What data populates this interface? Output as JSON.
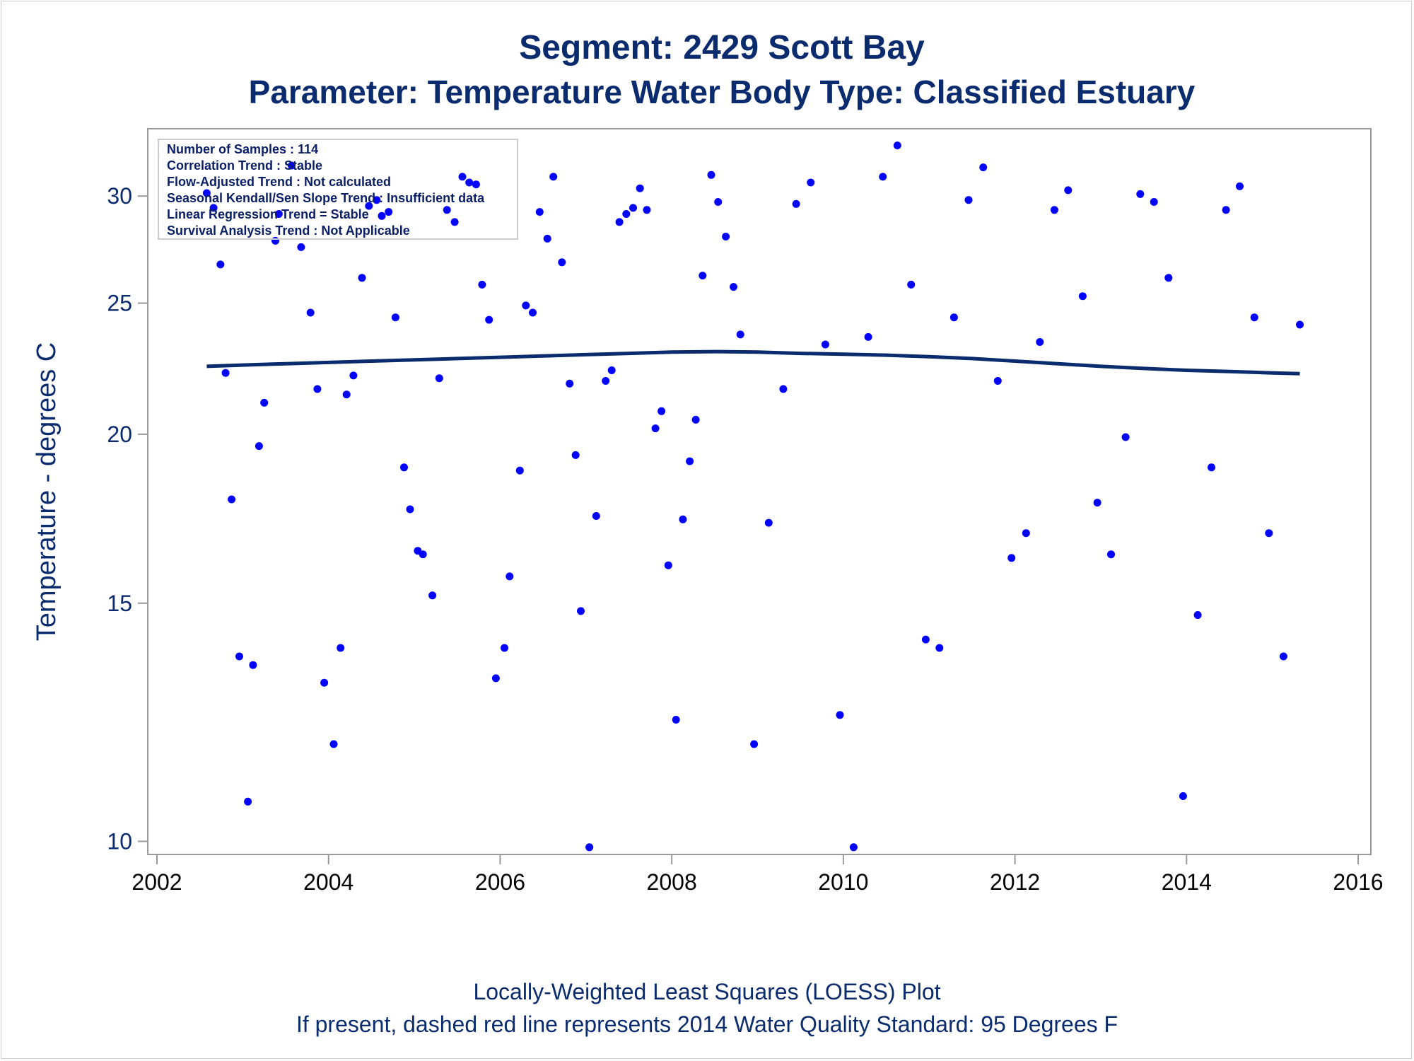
{
  "colors": {
    "title": "#0a2b6e",
    "point": "#0000ff",
    "loess_line": "#0a2b6e",
    "frame": "#999999",
    "inset_text": "#0a1f66",
    "y_tick_text": "#0a2b6e",
    "x_tick_text": "#000000"
  },
  "title_lines": [
    "Segment: 2429  Scott Bay",
    "Parameter: Temperature   Water Body Type: Classified Estuary"
  ],
  "footnotes": [
    "Locally-Weighted Least Squares (LOESS) Plot",
    "If present, dashed red line represents 2014 Water Quality Standard: 95   Degrees F"
  ],
  "inset_lines": [
    "Number of Samples : 114",
    "Correlation Trend : Stable",
    "Flow-Adjusted Trend : Not calculated",
    "Seasonal Kendall/Sen Slope Trend : Insufficient data",
    "Linear Regression Trend = Stable",
    "Survival Analysis Trend : Not Applicable"
  ],
  "chart_data": {
    "type": "scatter",
    "title": "Segment: 2429  Scott Bay",
    "subtitle": "Parameter: Temperature   Water Body Type: Classified Estuary",
    "xlabel": "",
    "ylabel": "Temperature - degrees C",
    "x_scale": "time (years)",
    "y_scale": "log",
    "xlim": [
      2002,
      2016
    ],
    "ylim": [
      9.85,
      33.2
    ],
    "x_ticks": [
      2002,
      2004,
      2006,
      2008,
      2010,
      2012,
      2014,
      2016
    ],
    "x_tick_labels": [
      "2002",
      "2004",
      "2006",
      "2008",
      "2010",
      "2012",
      "2014",
      "2016"
    ],
    "y_ticks": [
      10,
      15,
      20,
      25,
      30
    ],
    "y_tick_labels": [
      "10",
      "15",
      "20",
      "25",
      "30"
    ],
    "grid": false,
    "legend": "none",
    "series": [
      {
        "type": "scatter",
        "points": [
          [
            2002.58,
            30.15
          ],
          [
            2002.66,
            29.4
          ],
          [
            2002.74,
            26.7
          ],
          [
            2002.8,
            22.2
          ],
          [
            2002.87,
            17.9
          ],
          [
            2002.96,
            13.7
          ],
          [
            2003.06,
            10.7
          ],
          [
            2003.12,
            13.5
          ],
          [
            2003.19,
            19.6
          ],
          [
            2003.25,
            21.1
          ],
          [
            2003.42,
            29.1
          ],
          [
            2003.38,
            27.8
          ],
          [
            2003.57,
            31.6
          ],
          [
            2003.68,
            27.5
          ],
          [
            2003.79,
            24.6
          ],
          [
            2003.87,
            21.6
          ],
          [
            2003.95,
            13.1
          ],
          [
            2004.06,
            11.8
          ],
          [
            2004.14,
            13.9
          ],
          [
            2004.21,
            21.4
          ],
          [
            2004.29,
            22.1
          ],
          [
            2004.39,
            26.1
          ],
          [
            2004.47,
            29.5
          ],
          [
            2004.56,
            29.8
          ],
          [
            2004.62,
            29.0
          ],
          [
            2004.7,
            29.2
          ],
          [
            2004.78,
            24.4
          ],
          [
            2004.88,
            18.9
          ],
          [
            2004.95,
            17.6
          ],
          [
            2005.04,
            16.4
          ],
          [
            2005.1,
            16.3
          ],
          [
            2005.21,
            15.2
          ],
          [
            2005.29,
            22.0
          ],
          [
            2005.38,
            29.3
          ],
          [
            2005.47,
            28.7
          ],
          [
            2005.56,
            31.0
          ],
          [
            2005.64,
            30.7
          ],
          [
            2005.72,
            30.6
          ],
          [
            2005.79,
            25.8
          ],
          [
            2005.87,
            24.3
          ],
          [
            2005.95,
            13.2
          ],
          [
            2006.05,
            13.9
          ],
          [
            2006.11,
            15.7
          ],
          [
            2006.23,
            18.8
          ],
          [
            2006.3,
            24.9
          ],
          [
            2006.38,
            24.6
          ],
          [
            2006.46,
            29.2
          ],
          [
            2006.55,
            27.9
          ],
          [
            2006.62,
            31.0
          ],
          [
            2006.72,
            26.8
          ],
          [
            2006.81,
            21.8
          ],
          [
            2006.88,
            19.3
          ],
          [
            2006.94,
            14.8
          ],
          [
            2007.04,
            9.9
          ],
          [
            2007.12,
            17.4
          ],
          [
            2007.23,
            21.9
          ],
          [
            2007.3,
            22.3
          ],
          [
            2007.39,
            28.7
          ],
          [
            2007.47,
            29.1
          ],
          [
            2007.55,
            29.4
          ],
          [
            2007.63,
            30.4
          ],
          [
            2007.71,
            29.3
          ],
          [
            2007.81,
            20.2
          ],
          [
            2007.88,
            20.8
          ],
          [
            2007.96,
            16.0
          ],
          [
            2008.05,
            12.3
          ],
          [
            2008.13,
            17.3
          ],
          [
            2008.21,
            19.1
          ],
          [
            2008.28,
            20.5
          ],
          [
            2008.36,
            26.2
          ],
          [
            2008.46,
            31.1
          ],
          [
            2008.54,
            29.7
          ],
          [
            2008.63,
            28.0
          ],
          [
            2008.72,
            25.7
          ],
          [
            2008.8,
            23.7
          ],
          [
            2008.96,
            11.8
          ],
          [
            2009.13,
            17.2
          ],
          [
            2009.3,
            21.6
          ],
          [
            2009.45,
            29.6
          ],
          [
            2009.62,
            30.7
          ],
          [
            2009.79,
            23.3
          ],
          [
            2009.96,
            12.4
          ],
          [
            2010.12,
            9.9
          ],
          [
            2010.29,
            23.6
          ],
          [
            2010.46,
            31.0
          ],
          [
            2010.63,
            32.7
          ],
          [
            2010.79,
            25.8
          ],
          [
            2010.96,
            14.1
          ],
          [
            2011.12,
            13.9
          ],
          [
            2011.29,
            24.4
          ],
          [
            2011.46,
            29.8
          ],
          [
            2011.63,
            31.5
          ],
          [
            2011.8,
            21.9
          ],
          [
            2011.96,
            16.2
          ],
          [
            2012.13,
            16.9
          ],
          [
            2012.29,
            23.4
          ],
          [
            2012.46,
            29.3
          ],
          [
            2012.62,
            30.3
          ],
          [
            2012.79,
            25.3
          ],
          [
            2012.96,
            17.8
          ],
          [
            2013.12,
            16.3
          ],
          [
            2013.29,
            19.9
          ],
          [
            2013.46,
            30.1
          ],
          [
            2013.62,
            29.7
          ],
          [
            2013.79,
            26.1
          ],
          [
            2013.96,
            10.8
          ],
          [
            2014.13,
            14.7
          ],
          [
            2014.29,
            18.9
          ],
          [
            2014.46,
            29.3
          ],
          [
            2014.62,
            30.5
          ],
          [
            2014.79,
            24.4
          ],
          [
            2014.96,
            16.9
          ],
          [
            2015.13,
            13.7
          ],
          [
            2015.32,
            24.1
          ]
        ]
      },
      {
        "type": "line",
        "points": [
          [
            2002.58,
            22.45
          ],
          [
            2003.0,
            22.5
          ],
          [
            2003.5,
            22.55
          ],
          [
            2004.0,
            22.6
          ],
          [
            2004.5,
            22.65
          ],
          [
            2005.0,
            22.7
          ],
          [
            2005.5,
            22.75
          ],
          [
            2006.0,
            22.8
          ],
          [
            2006.5,
            22.85
          ],
          [
            2007.0,
            22.9
          ],
          [
            2007.5,
            22.95
          ],
          [
            2008.0,
            23.0
          ],
          [
            2008.5,
            23.02
          ],
          [
            2009.0,
            23.0
          ],
          [
            2009.5,
            22.95
          ],
          [
            2010.0,
            22.92
          ],
          [
            2010.5,
            22.88
          ],
          [
            2011.0,
            22.82
          ],
          [
            2011.5,
            22.75
          ],
          [
            2012.0,
            22.65
          ],
          [
            2012.5,
            22.55
          ],
          [
            2013.0,
            22.45
          ],
          [
            2013.5,
            22.37
          ],
          [
            2014.0,
            22.3
          ],
          [
            2014.5,
            22.25
          ],
          [
            2015.0,
            22.2
          ],
          [
            2015.32,
            22.17
          ]
        ]
      }
    ]
  }
}
